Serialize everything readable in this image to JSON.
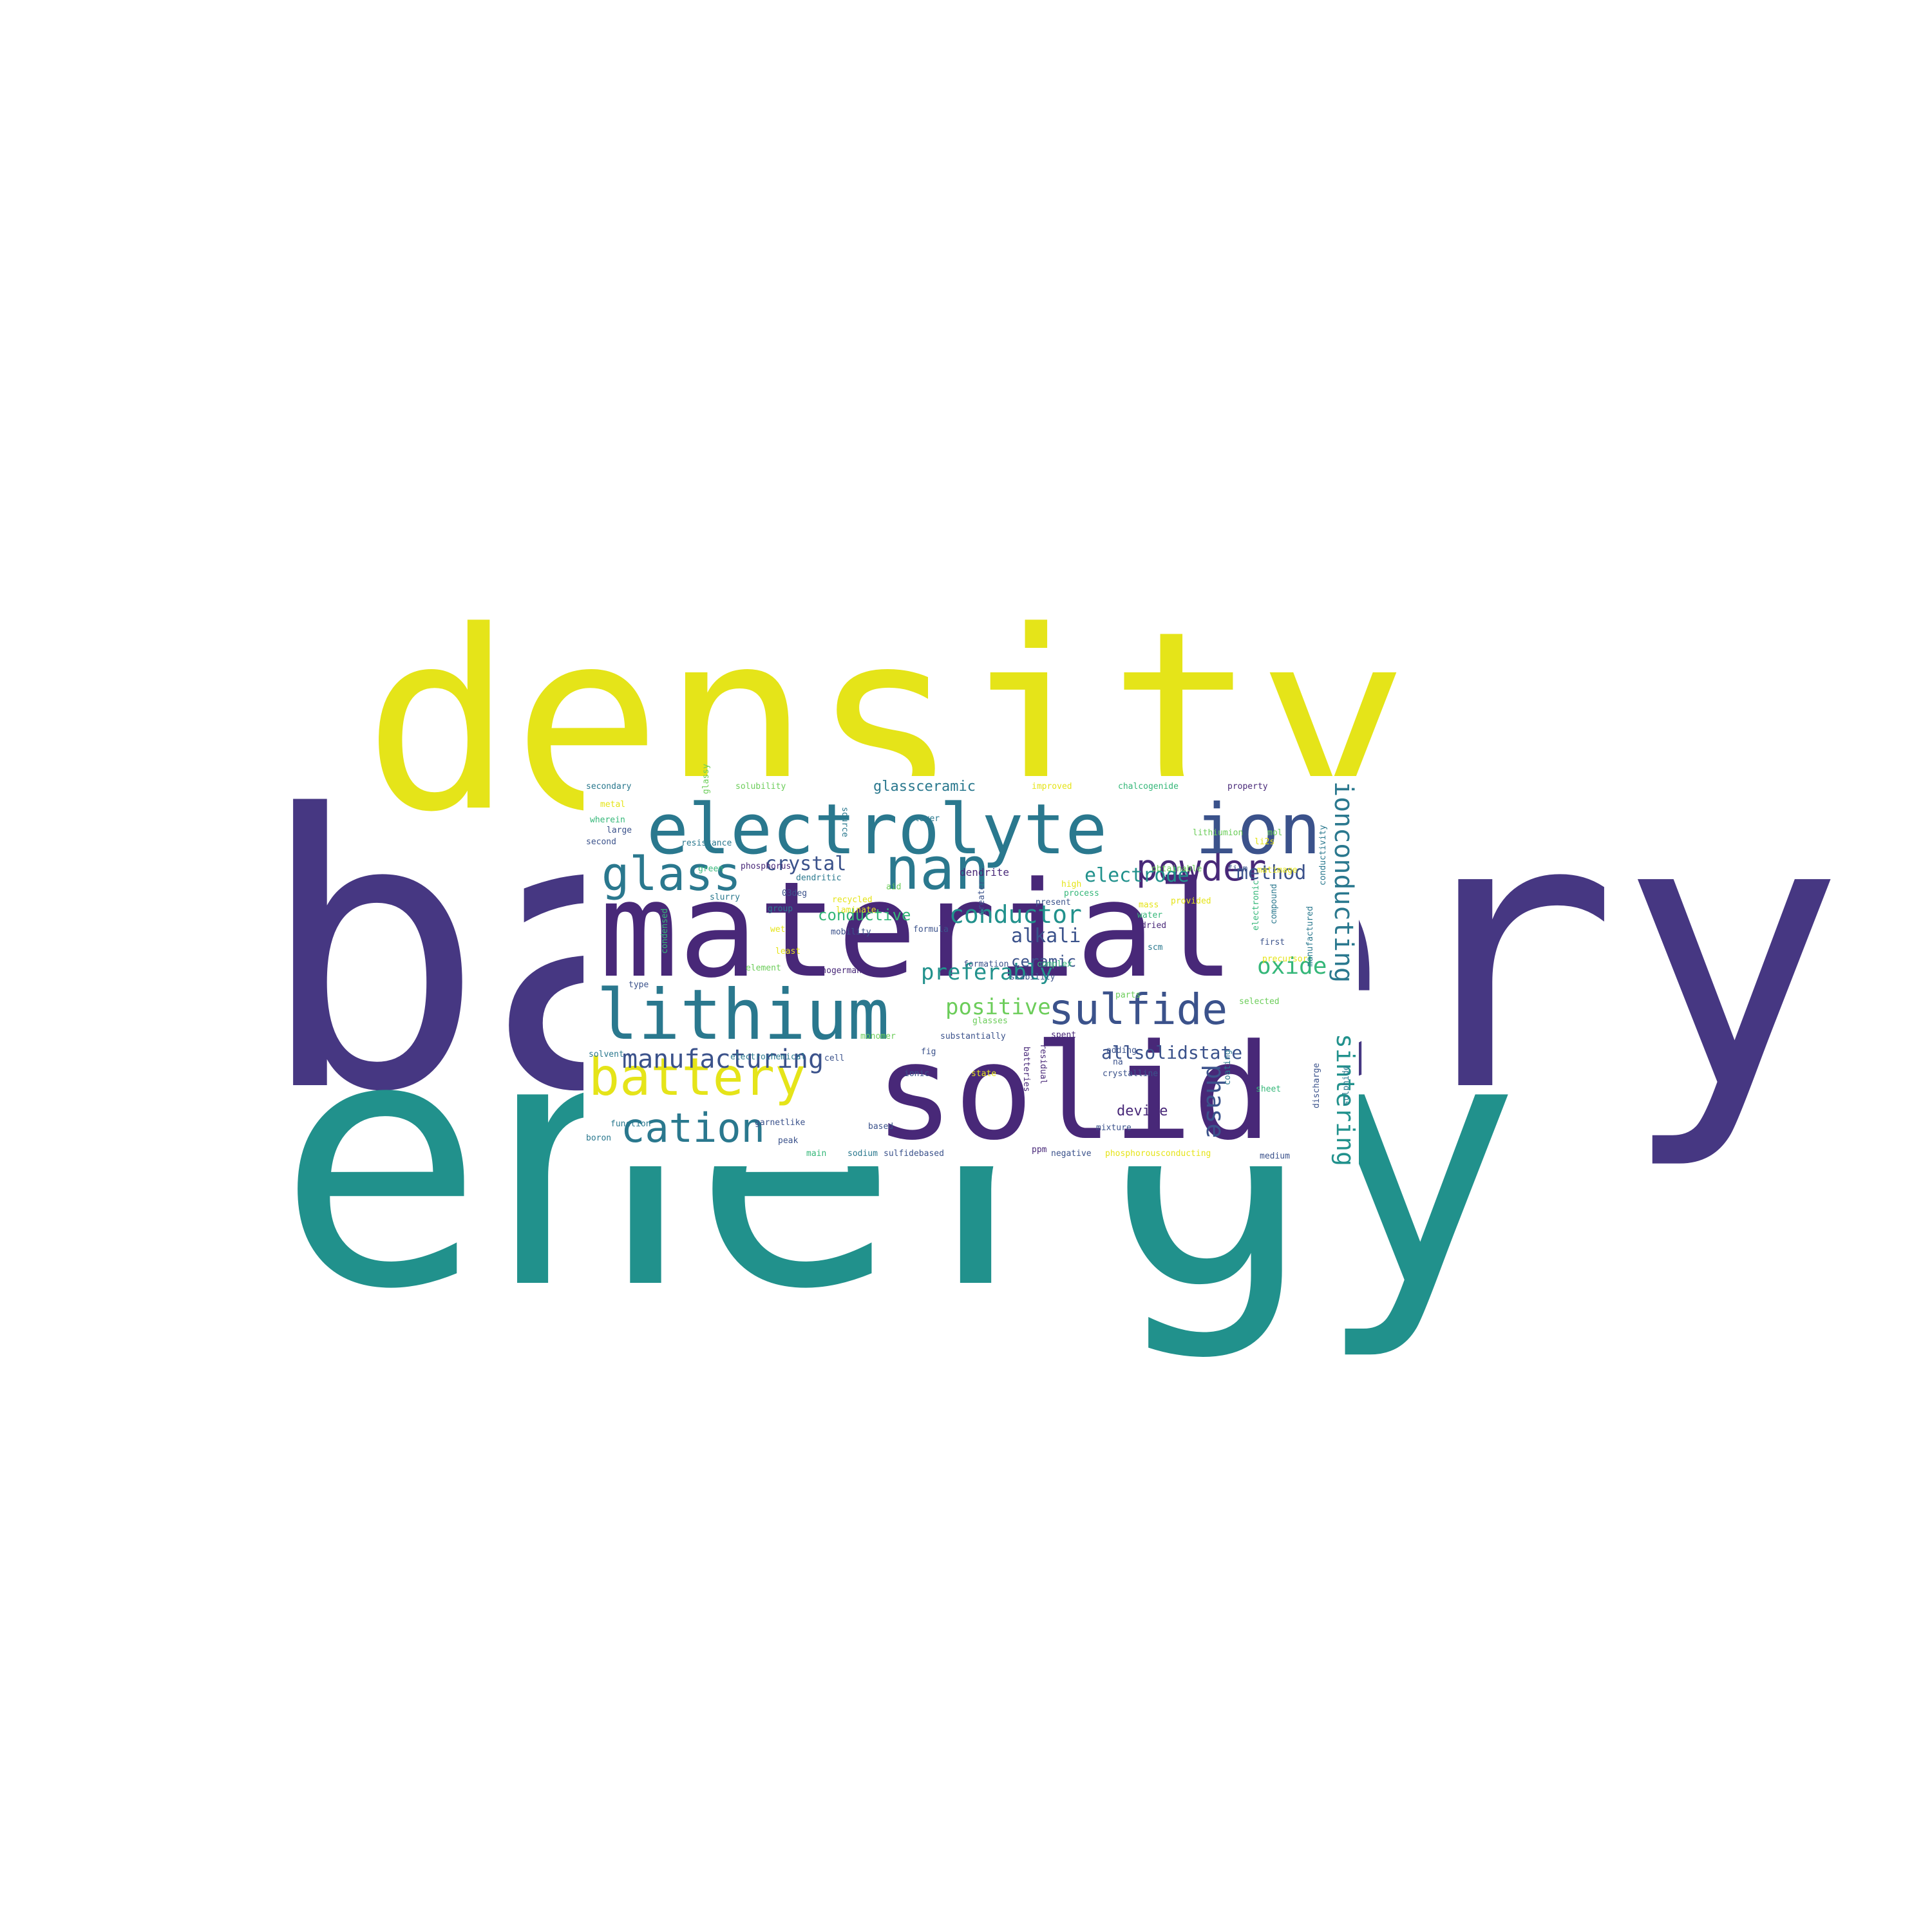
{
  "colors": {
    "background": "#ffffff",
    "dark_purple": "#463782",
    "deep_purple": "#482878",
    "teal": "#21918c",
    "blue_teal": "#2a788e",
    "slate_blue": "#3b528b",
    "green": "#35b779",
    "light_green": "#6ccd5a",
    "yellow": "#e5e419"
  },
  "big_words": {
    "battery": "battery",
    "density": "density",
    "energy": "energy"
  },
  "inset_words": {
    "material": "material",
    "solid": "solid",
    "electrolyte": "electrolyte",
    "lithium": "lithium",
    "glass": "glass",
    "nan": "nan",
    "ion": "ion",
    "battery": "battery",
    "cation": "cation",
    "sulfide": "sulfide",
    "powder": "powder",
    "manufacturing": "manufacturing",
    "ionconducting": "ionconducting",
    "sintering": "sintering",
    "conductor": "conductor",
    "electrode": "electrode",
    "method": "method",
    "preferably": "preferably",
    "positive": "positive",
    "crystal": "crystal",
    "alkali": "alkali",
    "ceramic": "ceramic",
    "oxide": "oxide",
    "allsolidstate": "allsolidstate",
    "phase": "phase",
    "conductive": "conductive",
    "device": "device",
    "glassceramic": "glassceramic",
    "dendrite": "dendrite",
    "secondary": "secondary",
    "solubility": "solubility",
    "improved": "improved",
    "chalcogenide": "chalcogenide",
    "property": "property",
    "metal": "metal",
    "glassy": "glassy",
    "wherein": "wherein",
    "layer": "layer",
    "source": "source",
    "large": "large",
    "lithiumion": "lithiumion",
    "mol": "mol",
    "second": "second",
    "resistance": "resistance",
    "li2s": "li2s",
    "dendritic": "dendritic",
    "process": "process",
    "green": "green",
    "phosphorus": "phosphorus",
    "obtainable": "obtainable",
    "film": "film",
    "matimage": "matimage",
    "aid": "aid",
    "high": "high",
    "slurry": "slurry",
    "recycled": "recycled",
    "03deg": "03deg",
    "present": "present",
    "provided": "provided",
    "group": "group",
    "laminate": "laminate",
    "greater": "greater",
    "water": "water",
    "mass": "mass",
    "compound": "compound",
    "electronic": "electronic",
    "condensed": "condensed",
    "wet": "wet",
    "mobility": "mobility",
    "formula": "formula",
    "dried": "dried",
    "first": "first",
    "manufactured": "manufactured",
    "conductivity": "conductivity",
    "scm": "scm",
    "least": "least",
    "element": "element",
    "selenogermanate": "selenogermanate",
    "formation": "formation",
    "complex": "complex",
    "stability": "stability",
    "precursor": "precursor",
    "type": "type",
    "parts": "parts",
    "selected": "selected",
    "glasses": "glasses",
    "fig": "fig",
    "monomer": "monomer",
    "substantially": "substantially",
    "spent": "spent",
    "adding": "adding",
    "solvent": "solvent",
    "electrochemical": "electrochemical",
    "cell": "cell",
    "batteries": "batteries",
    "residual": "residual",
    "na": "na",
    "ionic": "ionic",
    "state": "state",
    "crystalline": "crystalline",
    "coating": "coating",
    "sheet": "sheet",
    "discharge": "discharge",
    "sulphide": "sulphide",
    "function": "function",
    "garnetlike": "garnetlike",
    "based": "based",
    "mixture": "mixture",
    "boron": "boron",
    "peak": "peak",
    "main": "main",
    "sodium": "sodium",
    "sulfidebased": "sulfidebased",
    "ppm": "ppm",
    "negative": "negative",
    "phosphorousconducting": "phosphorousconducting",
    "medium": "medium"
  }
}
